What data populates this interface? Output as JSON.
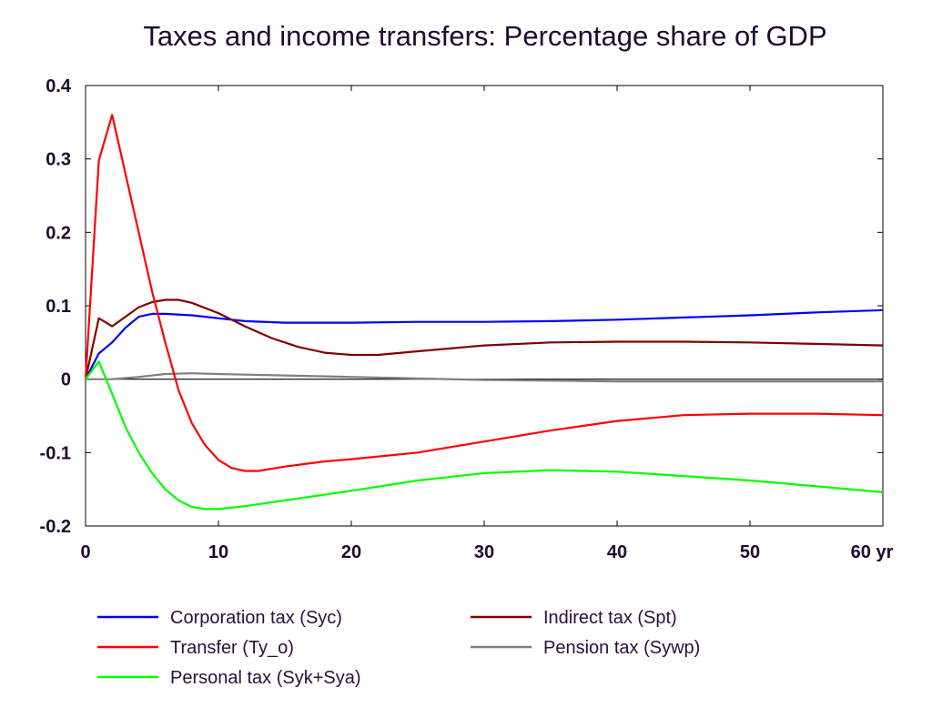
{
  "chart_data": {
    "type": "line",
    "title": "Taxes and income transfers: Percentage share of GDP",
    "xlabel": "",
    "ylabel": "",
    "x_unit": "yr",
    "xlim": [
      0,
      60
    ],
    "ylim": [
      -0.2,
      0.4
    ],
    "x_ticks": [
      0,
      10,
      20,
      30,
      40,
      50,
      60
    ],
    "x_tick_labels": [
      "0",
      "10",
      "20",
      "30",
      "40",
      "50",
      "60 yr"
    ],
    "y_ticks": [
      0.4,
      0.3,
      0.2,
      0.1,
      0,
      -0.1,
      -0.2
    ],
    "y_tick_labels": [
      "0.4",
      "0.3",
      "0.2",
      "0.1",
      "0",
      "-0.1",
      "-0.2"
    ],
    "grid": false,
    "zero_line": true,
    "legend_position": "bottom",
    "series": [
      {
        "name": "Corporation tax (Syc)",
        "color": "#0000ff",
        "x": [
          0,
          1,
          2,
          3,
          4,
          5,
          6,
          8,
          10,
          12,
          15,
          20,
          25,
          30,
          35,
          40,
          45,
          50,
          55,
          60
        ],
        "y": [
          0.0,
          0.035,
          0.05,
          0.07,
          0.085,
          0.089,
          0.089,
          0.087,
          0.083,
          0.079,
          0.077,
          0.077,
          0.078,
          0.078,
          0.079,
          0.081,
          0.084,
          0.087,
          0.091,
          0.094
        ]
      },
      {
        "name": "Transfer (Ty_o)",
        "color": "#ff0000",
        "x": [
          0,
          1,
          2,
          3,
          4,
          5,
          6,
          7,
          8,
          9,
          10,
          11,
          12,
          13,
          15,
          18,
          20,
          25,
          30,
          35,
          40,
          45,
          50,
          55,
          60
        ],
        "y": [
          0.0,
          0.298,
          0.36,
          0.28,
          0.2,
          0.12,
          0.05,
          -0.015,
          -0.06,
          -0.09,
          -0.11,
          -0.121,
          -0.125,
          -0.125,
          -0.119,
          -0.112,
          -0.109,
          -0.1,
          -0.085,
          -0.07,
          -0.057,
          -0.049,
          -0.047,
          -0.047,
          -0.049
        ]
      },
      {
        "name": "Personal tax (Syk+Sya)",
        "color": "#00ff00",
        "x": [
          0,
          1,
          2,
          3,
          4,
          5,
          6,
          7,
          8,
          9,
          10,
          12,
          15,
          20,
          25,
          30,
          35,
          40,
          45,
          50,
          55,
          60
        ],
        "y": [
          0.0,
          0.024,
          -0.02,
          -0.065,
          -0.1,
          -0.128,
          -0.15,
          -0.165,
          -0.174,
          -0.177,
          -0.177,
          -0.173,
          -0.165,
          -0.152,
          -0.138,
          -0.128,
          -0.124,
          -0.126,
          -0.132,
          -0.138,
          -0.146,
          -0.154
        ]
      },
      {
        "name": "Indirect tax (Spt)",
        "color": "#800000",
        "x": [
          0,
          1,
          2,
          3,
          4,
          5,
          6,
          7,
          8,
          10,
          12,
          14,
          16,
          18,
          20,
          22,
          25,
          30,
          35,
          40,
          45,
          50,
          55,
          60
        ],
        "y": [
          0.0,
          0.083,
          0.072,
          0.085,
          0.098,
          0.105,
          0.108,
          0.108,
          0.104,
          0.09,
          0.072,
          0.056,
          0.044,
          0.036,
          0.033,
          0.033,
          0.038,
          0.046,
          0.05,
          0.051,
          0.051,
          0.05,
          0.048,
          0.046
        ]
      },
      {
        "name": "Pension tax (Sywp)",
        "color": "#808080",
        "x": [
          0,
          2,
          4,
          6,
          8,
          10,
          15,
          20,
          25,
          30,
          35,
          40,
          45,
          50,
          55,
          60
        ],
        "y": [
          0.0,
          0.0,
          0.003,
          0.007,
          0.008,
          0.007,
          0.005,
          0.003,
          0.001,
          -0.001,
          -0.002,
          -0.003,
          -0.003,
          -0.003,
          -0.003,
          -0.003
        ]
      }
    ]
  }
}
